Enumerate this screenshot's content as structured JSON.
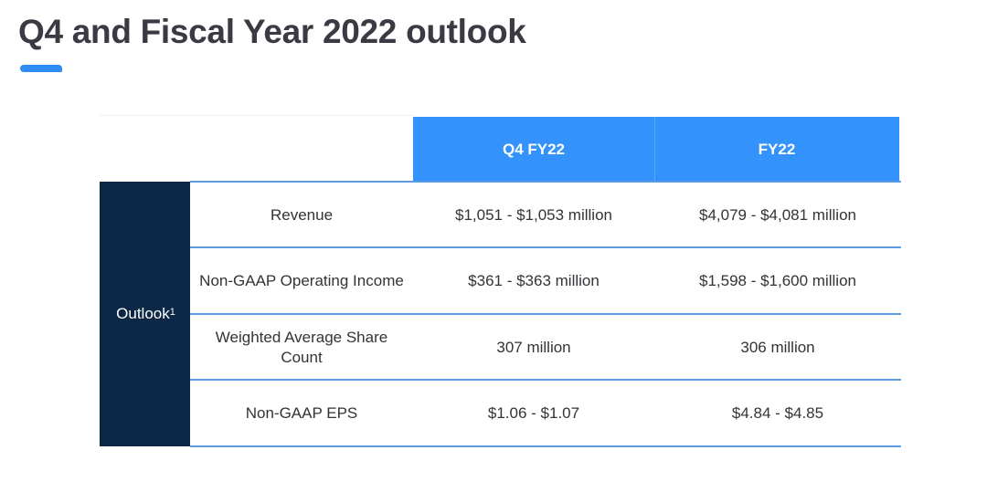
{
  "title": "Q4 and Fiscal Year 2022 outlook",
  "colors": {
    "header_blue": "#3392fb",
    "sidebar_navy": "#0d2747",
    "accent_blue": "#2f8cf5",
    "divider_blue": "#5b9be0"
  },
  "table": {
    "columns": {
      "q4": "Q4 FY22",
      "fy": "FY22"
    },
    "group_label": "Outlook",
    "group_footnote": "1",
    "rows": [
      {
        "label": "Revenue",
        "q4": "$1,051 - $1,053 million",
        "fy": "$4,079 - $4,081 million"
      },
      {
        "label": "Non-GAAP Operating Income",
        "q4": "$361 - $363 million",
        "fy": "$1,598 - $1,600 million"
      },
      {
        "label": "Weighted Average Share Count",
        "q4": "307 million",
        "fy": "306 million"
      },
      {
        "label": "Non-GAAP EPS",
        "q4": "$1.06 - $1.07",
        "fy": "$4.84 - $4.85"
      }
    ]
  }
}
